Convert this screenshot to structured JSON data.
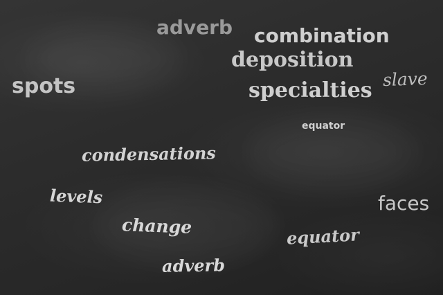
{
  "words": {
    "adverb_top": "adverb",
    "combination": "combination",
    "deposition": "deposition",
    "slave": "slave",
    "spots": "spots",
    "specialties": "specialties",
    "equator_small": "equator",
    "condensations": "condensations",
    "levels": "levels",
    "faces": "faces",
    "change": "change",
    "equator_script": "equator",
    "adverb_bottom": "adverb"
  },
  "colors": {
    "board": "#2b2b2b",
    "chalk_bright": "#d9d9d9",
    "chalk_soft": "#b8b8b8",
    "chalk_dim": "#9a9a9a"
  }
}
